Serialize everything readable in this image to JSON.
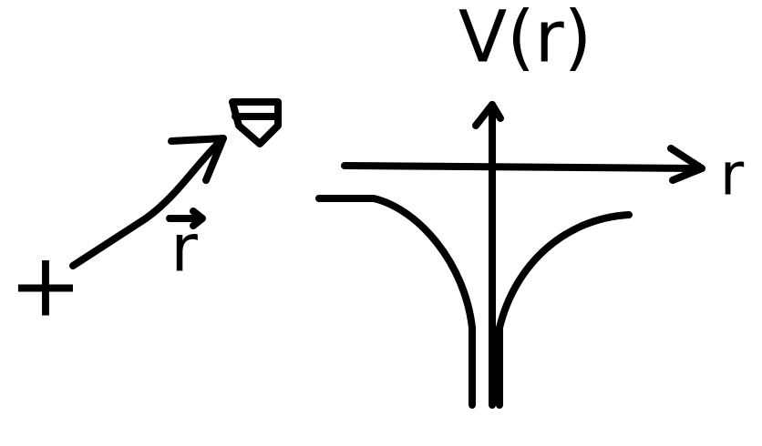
{
  "labels": {
    "potential": "V(r)",
    "radial_axis": "r",
    "vector": "r",
    "charge": "+"
  }
}
